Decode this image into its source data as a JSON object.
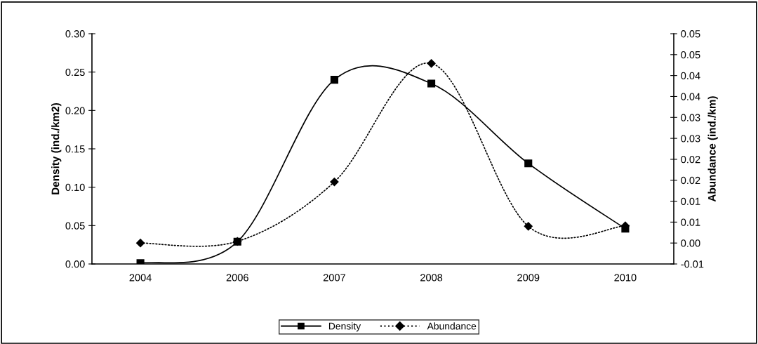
{
  "chart_data": {
    "type": "line",
    "categories": [
      "2004",
      "2006",
      "2007",
      "2008",
      "2009",
      "2010"
    ],
    "ylabel": "Density (ind./km2)",
    "y2label": "Abundance (ind./km)",
    "ylim": [
      0,
      0.3
    ],
    "yticks": [
      {
        "value": 0,
        "label": "0.00"
      },
      {
        "value": 0.05,
        "label": "0.05"
      },
      {
        "value": 0.1,
        "label": "0.10"
      },
      {
        "value": 0.15,
        "label": "0.15"
      },
      {
        "value": 0.2,
        "label": "0.20"
      },
      {
        "value": 0.25,
        "label": "0.25"
      },
      {
        "value": 0.3,
        "label": "0.30"
      }
    ],
    "y2lim": [
      -0.005,
      0.05
    ],
    "y2ticks": [
      {
        "value": -0.005,
        "label": "-0.01"
      },
      {
        "value": 0,
        "label": "0.00"
      },
      {
        "value": 0.005,
        "label": "0.01"
      },
      {
        "value": 0.01,
        "label": "0.01"
      },
      {
        "value": 0.015,
        "label": "0.02"
      },
      {
        "value": 0.02,
        "label": "0.02"
      },
      {
        "value": 0.025,
        "label": "0.03"
      },
      {
        "value": 0.03,
        "label": "0.03"
      },
      {
        "value": 0.035,
        "label": "0.04"
      },
      {
        "value": 0.04,
        "label": "0.04"
      },
      {
        "value": 0.045,
        "label": "0.05"
      },
      {
        "value": 0.05,
        "label": "0.05"
      }
    ],
    "legend": "bottom",
    "grid": false,
    "series": [
      {
        "name": "Density",
        "color": "#000000",
        "marker": "square",
        "line_style": "solid",
        "values": [
          0.001,
          0.029,
          0.24,
          0.235,
          0.131,
          0.046
        ]
      },
      {
        "name": "Abundance",
        "color": "#000000",
        "marker": "diamond",
        "line_style": "dotted",
        "axis": "y2",
        "values": [
          0.0,
          0.0004,
          0.0146,
          0.0429,
          0.004,
          0.0041
        ]
      }
    ]
  }
}
